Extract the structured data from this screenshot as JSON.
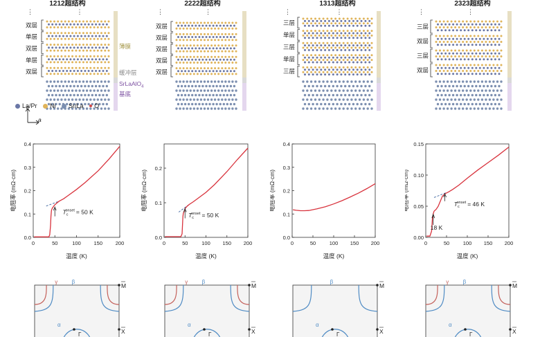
{
  "colors": {
    "curve": "#d8323c",
    "fit": "#4a6fa5",
    "film_bar": "#e7dfc3",
    "buffer_bar": "#d9d9d9",
    "substrate_bar": "#e4d7ee",
    "atom_la": "#6a77a6",
    "atom_ni": "#e0b45a",
    "atom_sr": "#7c8fb0",
    "atom_o": "#d04a4a",
    "fermi_red": "#c4605a",
    "fermi_blue": "#4f8bc4"
  },
  "panels": [
    {
      "title": "1212超结构",
      "layers": [
        "双层",
        "单层",
        "双层",
        "单层",
        "双层"
      ],
      "side_labels": {
        "film": "薄膜",
        "buffer": "缓冲层",
        "substrate_line1": "SrLaAlO",
        "substrate_sub": "4",
        "substrate_line2": "基底"
      },
      "legend": {
        "la": "La/Pr",
        "ni": "Ni",
        "sr": "Sr/La",
        "o": "O",
        "axis_c": "c",
        "axis_a": "a"
      },
      "ylabel": "电阻率 (mΩ·cm)",
      "xlabel": "温度 (K)",
      "yticks": [
        "0.0",
        "0.1",
        "0.2",
        "0.3",
        "0.4"
      ],
      "xticks": [
        "0",
        "50",
        "100",
        "150",
        "200"
      ],
      "annotations": {
        "tc_prefix": "T",
        "tc_sub": "c",
        "tc_sup": "onset",
        "tc_value": "= 50 K"
      },
      "fermi": {
        "gamma": "γ",
        "beta": "β",
        "alpha": "α",
        "m": "M",
        "x": "X",
        "gamma_point": "Γ"
      }
    },
    {
      "title": "2222超结构",
      "layers": [
        "双层",
        "双层",
        "双层",
        "双层",
        "双层"
      ],
      "ylabel": "电阻率 (mΩ·cm)",
      "xlabel": "温度 (K)",
      "yticks": [
        "0.0",
        "0.1",
        "0.2"
      ],
      "xticks": [
        "0",
        "50",
        "100",
        "150",
        "200"
      ],
      "annotations": {
        "tc_prefix": "T",
        "tc_sub": "c",
        "tc_sup": "onset",
        "tc_value": "= 50 K"
      },
      "fermi": {
        "gamma": "γ",
        "beta": "β",
        "alpha": "α",
        "m": "M",
        "x": "X",
        "gamma_point": "Γ"
      }
    },
    {
      "title": "1313超结构",
      "layers": [
        "三层",
        "单层",
        "三层",
        "单层",
        "三层"
      ],
      "ylabel": "电阻率 (mΩ·cm)",
      "xlabel": "温度 (K)",
      "yticks": [
        "0.0",
        "0.1",
        "0.2",
        "0.3",
        "0.4"
      ],
      "xticks": [
        "0",
        "50",
        "100",
        "150",
        "200"
      ],
      "fermi": {
        "beta": "β",
        "alpha": "α",
        "m": "M",
        "x": "X",
        "gamma_point": "Γ"
      }
    },
    {
      "title": "2323超结构",
      "layers": [
        "三层",
        "双层",
        "三层",
        "双层"
      ],
      "ylabel": "电阻率 (mΩ·cm)",
      "xlabel": "温度 (K)",
      "yticks": [
        "0.00",
        "0.05",
        "0.10",
        "0.15"
      ],
      "xticks": [
        "0",
        "50",
        "100",
        "150",
        "200"
      ],
      "annotations": {
        "tc_prefix": "T",
        "tc_sub": "c",
        "tc_sup": "onset",
        "tc_value": "= 46 K",
        "low_t": "18 K"
      },
      "fermi": {
        "gamma": "γ",
        "beta": "β",
        "alpha": "α",
        "m": "M",
        "x": "X",
        "gamma_point": "Γ"
      }
    }
  ],
  "chart_data": [
    {
      "type": "line",
      "title": "1212超结构",
      "xlabel": "温度 (K)",
      "ylabel": "电阻率 (mΩ·cm)",
      "xlim": [
        0,
        200
      ],
      "ylim": [
        0,
        0.4
      ],
      "series": [
        {
          "name": "resistivity",
          "x": [
            2,
            36,
            38,
            40,
            41,
            42,
            44,
            46,
            48,
            50,
            55,
            60,
            70,
            80,
            100,
            120,
            150,
            175,
            200
          ],
          "y": [
            0.002,
            0.002,
            0.01,
            0.05,
            0.09,
            0.115,
            0.125,
            0.13,
            0.135,
            0.14,
            0.148,
            0.155,
            0.165,
            0.178,
            0.205,
            0.235,
            0.285,
            0.335,
            0.39
          ]
        }
      ],
      "fit": {
        "x": [
          30,
          60
        ],
        "y": [
          0.134,
          0.155
        ]
      }
    },
    {
      "type": "line",
      "title": "2222超结构",
      "xlabel": "温度 (K)",
      "ylabel": "电阻率 (mΩ·cm)",
      "xlim": [
        0,
        200
      ],
      "ylim": [
        0,
        0.27
      ],
      "series": [
        {
          "name": "resistivity",
          "x": [
            2,
            40,
            43,
            44,
            45,
            46,
            48,
            50,
            55,
            60,
            70,
            80,
            100,
            120,
            150,
            175,
            200
          ],
          "y": [
            0.002,
            0.002,
            0.01,
            0.035,
            0.06,
            0.07,
            0.075,
            0.083,
            0.09,
            0.095,
            0.103,
            0.112,
            0.13,
            0.152,
            0.19,
            0.225,
            0.258
          ]
        }
      ],
      "fit": {
        "x": [
          35,
          62
        ],
        "y": [
          0.073,
          0.097
        ]
      }
    },
    {
      "type": "line",
      "title": "1313超结构",
      "xlabel": "温度 (K)",
      "ylabel": "电阻率 (mΩ·cm)",
      "xlim": [
        0,
        200
      ],
      "ylim": [
        0,
        0.4
      ],
      "series": [
        {
          "name": "resistivity",
          "x": [
            2,
            10,
            20,
            30,
            40,
            60,
            80,
            100,
            120,
            140,
            160,
            180,
            200
          ],
          "y": [
            0.118,
            0.116,
            0.114,
            0.114,
            0.115,
            0.122,
            0.131,
            0.143,
            0.157,
            0.173,
            0.19,
            0.209,
            0.23
          ]
        }
      ]
    },
    {
      "type": "line",
      "title": "2323超结构",
      "xlabel": "温度 (K)",
      "ylabel": "电阻率 (mΩ·cm)",
      "xlim": [
        0,
        200
      ],
      "ylim": [
        0,
        0.15
      ],
      "series": [
        {
          "name": "resistivity",
          "x": [
            2,
            10,
            14,
            16,
            18,
            20,
            25,
            30,
            35,
            40,
            46,
            55,
            65,
            80,
            100,
            125,
            150,
            175,
            200
          ],
          "y": [
            0.002,
            0.002,
            0.01,
            0.03,
            0.038,
            0.042,
            0.045,
            0.05,
            0.058,
            0.066,
            0.07,
            0.073,
            0.077,
            0.084,
            0.095,
            0.108,
            0.12,
            0.132,
            0.145
          ]
        }
      ],
      "fit": {
        "x": [
          20,
          50
        ],
        "y": [
          0.064,
          0.072
        ]
      }
    }
  ]
}
